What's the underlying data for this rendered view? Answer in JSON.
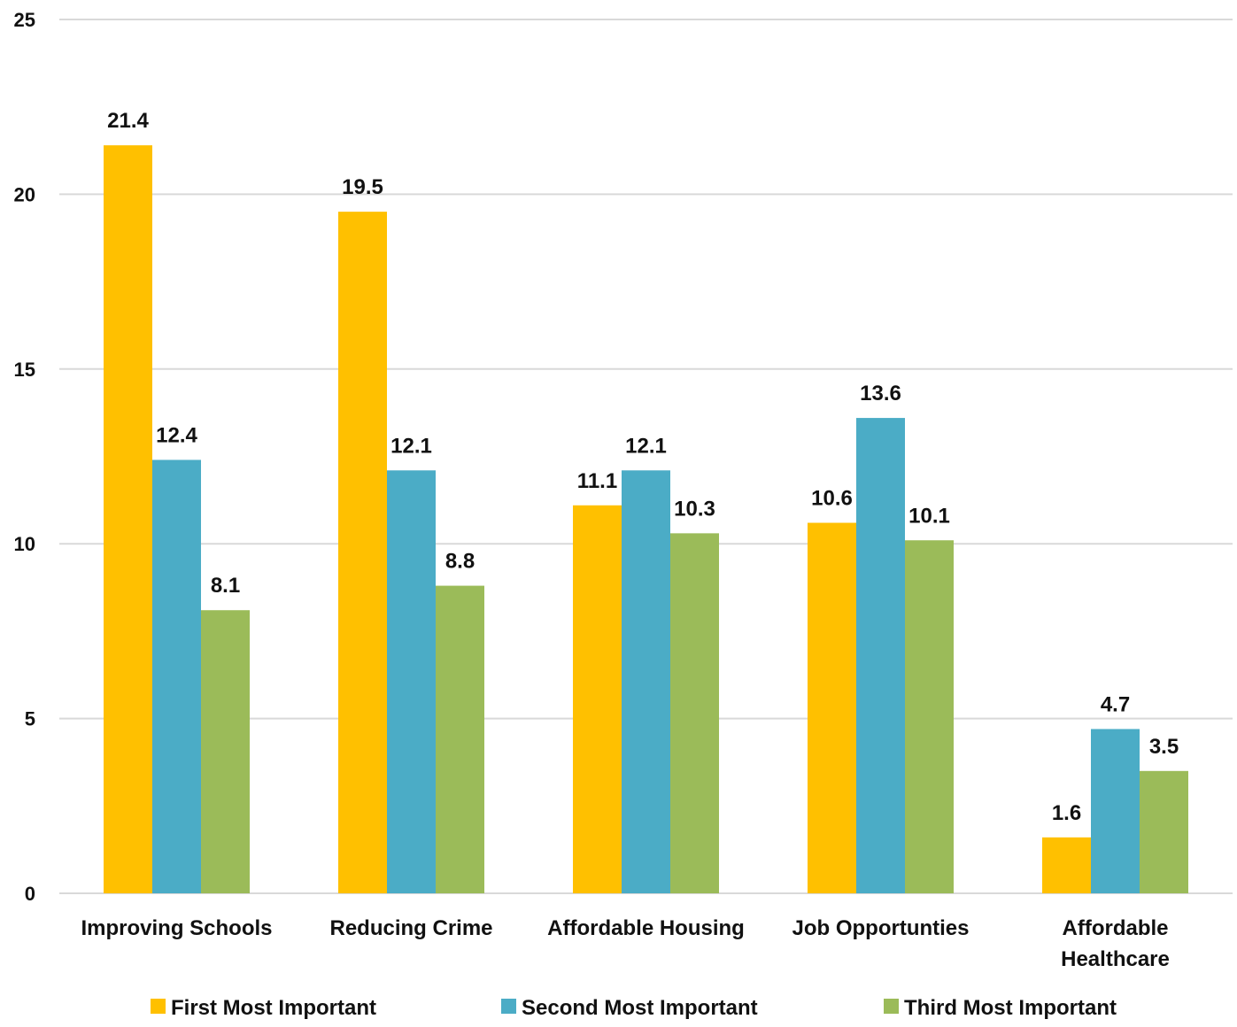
{
  "chart_data": {
    "type": "bar",
    "categories": [
      "Improving Schools",
      "Reducing Crime",
      "Affordable Housing",
      "Job Opportunties",
      "Affordable Healthcare"
    ],
    "category_lines": [
      [
        "Improving Schools"
      ],
      [
        "Reducing Crime"
      ],
      [
        "Affordable Housing"
      ],
      [
        "Job Opportunties"
      ],
      [
        "Affordable",
        "Healthcare"
      ]
    ],
    "series": [
      {
        "name": "First Most Important",
        "color": "#FFC000",
        "values": [
          21.4,
          19.5,
          11.1,
          10.6,
          1.6
        ]
      },
      {
        "name": "Second Most Important",
        "color": "#4BACC6",
        "values": [
          12.4,
          12.1,
          12.1,
          13.6,
          4.7
        ]
      },
      {
        "name": "Third Most Important",
        "color": "#9BBB59",
        "values": [
          8.1,
          8.8,
          10.3,
          10.1,
          3.5
        ]
      }
    ],
    "ylim": [
      0,
      25
    ],
    "yticks": [
      0,
      5,
      10,
      15,
      20,
      25
    ],
    "grid": true,
    "grid_color": "#D9D9D9",
    "legend_position": "bottom",
    "data_labels": true
  }
}
